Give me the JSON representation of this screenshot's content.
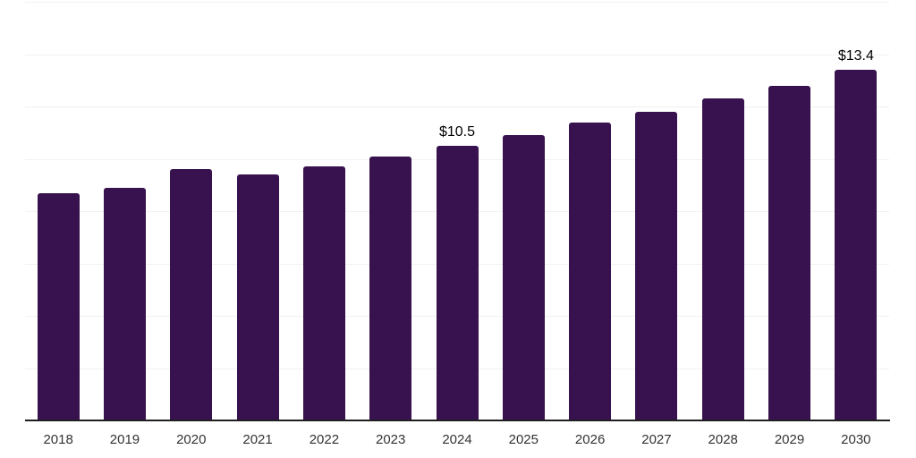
{
  "chart_data": {
    "type": "bar",
    "title": "",
    "xlabel": "",
    "ylabel": "",
    "categories": [
      "2018",
      "2019",
      "2020",
      "2021",
      "2022",
      "2023",
      "2024",
      "2025",
      "2026",
      "2027",
      "2028",
      "2029",
      "2030"
    ],
    "values": [
      8.7,
      8.9,
      9.6,
      9.4,
      9.7,
      10.1,
      10.5,
      10.9,
      11.4,
      11.8,
      12.3,
      12.8,
      13.4
    ],
    "data_labels": [
      {
        "category": "2024",
        "text": "$10.5"
      },
      {
        "category": "2030",
        "text": "$13.4"
      }
    ],
    "ylim": [
      0,
      16
    ],
    "gridline_step": 2,
    "grid": true,
    "legend": "none",
    "bar_color": "#37124E",
    "gridline_color": "#f1f1f1",
    "axis_line_color": "#1f1f1f",
    "tick_label_color": "#333333",
    "data_label_color": "#000000"
  }
}
